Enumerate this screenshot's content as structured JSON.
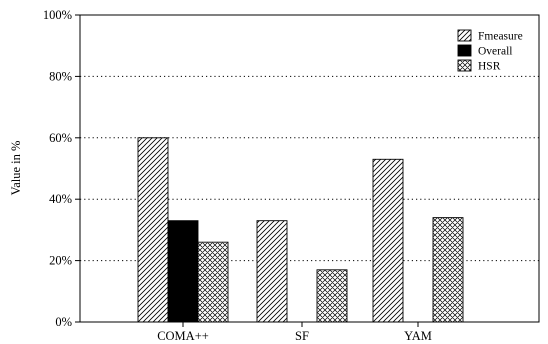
{
  "chart_data": {
    "type": "bar",
    "title": "",
    "xlabel": "",
    "ylabel": "Value in %",
    "ylim": [
      0,
      100
    ],
    "yticks": [
      0,
      20,
      40,
      60,
      80,
      100
    ],
    "ytick_labels": [
      "0%",
      "20%",
      "40%",
      "60%",
      "80%",
      "100%"
    ],
    "grid": "horizontal dotted",
    "legend_position": "top-right",
    "categories": [
      "COMA++",
      "SF",
      "YAM"
    ],
    "series": [
      {
        "name": "Fmeasure",
        "pattern": "diagonal-hatch",
        "color": "#000000",
        "values": [
          60,
          33,
          53
        ]
      },
      {
        "name": "Overall",
        "pattern": "solid",
        "color": "#000000",
        "values": [
          33,
          null,
          null
        ]
      },
      {
        "name": "HSR",
        "pattern": "cross-hatch",
        "color": "#000000",
        "values": [
          26,
          17,
          34
        ]
      }
    ]
  }
}
